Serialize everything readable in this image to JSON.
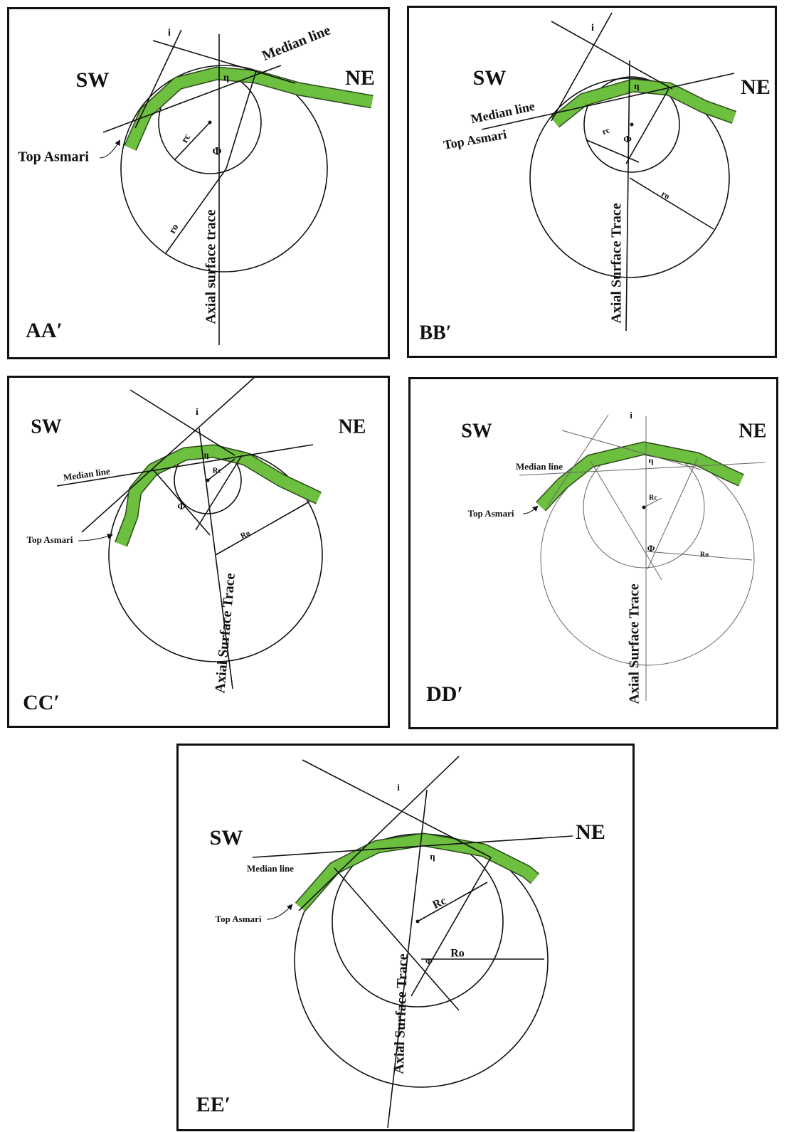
{
  "panels": [
    {
      "name": "AA′",
      "left": "SW",
      "right": "NE",
      "median": "Median line",
      "top": "Top Asmari",
      "axial": "Axial surface trace",
      "rc": "rc",
      "ro": "ro",
      "phi": "Φ",
      "eta": "η",
      "i": "i"
    },
    {
      "name": "BB′",
      "left": "SW",
      "right": "NE",
      "median": "Median line",
      "top": "Top Asmari",
      "axial": "Axial Surface Trace",
      "rc": "rc",
      "ro": "ro",
      "phi": "Φ",
      "eta": "η",
      "i": "i"
    },
    {
      "name": "CC′",
      "left": "SW",
      "right": "NE",
      "median": "Median line",
      "top": "Top Asmari",
      "axial": "Axial Surface Trace",
      "rc": "Rc",
      "ro": "Ro",
      "phi": "Φ",
      "eta": "η",
      "i": "i"
    },
    {
      "name": "DD′",
      "left": "SW",
      "right": "NE",
      "median": "Median line",
      "top": "Top Asmari",
      "axial": "Axial Surface Trace",
      "rc": "Rc",
      "ro": "Ro",
      "phi": "Φ",
      "eta": "η",
      "i": "i"
    },
    {
      "name": "EE′",
      "left": "SW",
      "right": "NE",
      "median": "Median line",
      "top": "Top Asmari",
      "axial": "Axial Surface Trace",
      "rc": "Rc",
      "ro": "Ro",
      "phi": "Φ",
      "eta": "η",
      "i": "i"
    }
  ]
}
